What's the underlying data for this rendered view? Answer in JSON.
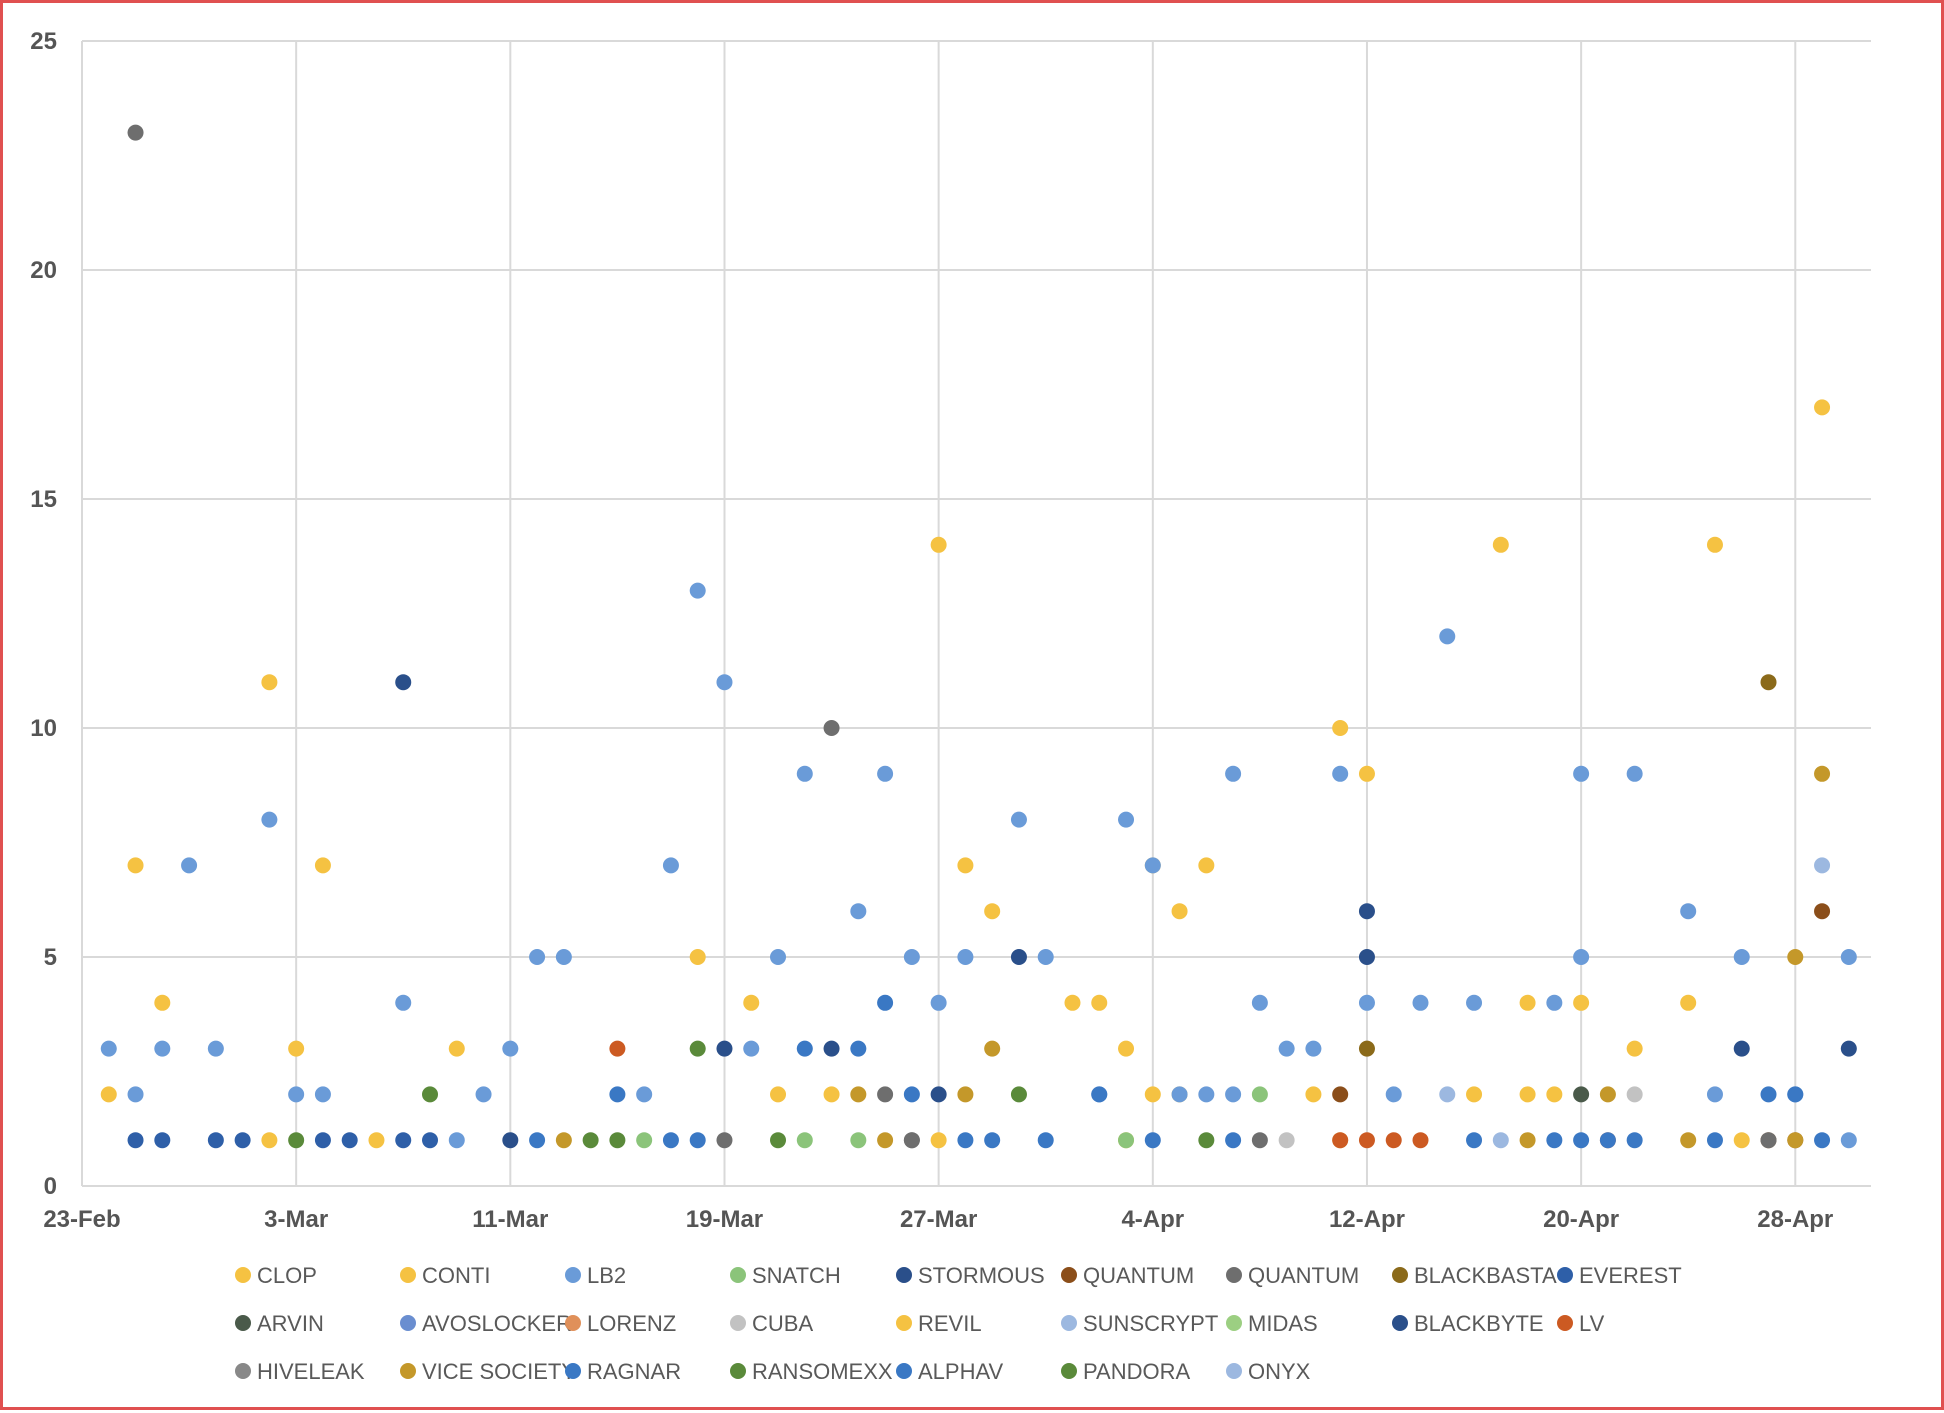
{
  "chart_data": {
    "type": "scatter",
    "title": "",
    "xlabel": "",
    "ylabel": "",
    "x_axis_type": "date",
    "x_range": [
      "2022-02-23",
      "2022-04-30"
    ],
    "x_tick_labels": [
      "23-Feb",
      "3-Mar",
      "11-Mar",
      "19-Mar",
      "27-Mar",
      "4-Apr",
      "12-Apr",
      "20-Apr",
      "28-Apr"
    ],
    "x_ticks": [
      "2022-02-23",
      "2022-03-03",
      "2022-03-11",
      "2022-03-19",
      "2022-03-27",
      "2022-04-04",
      "2022-04-12",
      "2022-04-20",
      "2022-04-28"
    ],
    "ylim": [
      0,
      25
    ],
    "y_ticks": [
      0,
      5,
      10,
      15,
      20,
      25
    ],
    "y_tick_labels": [
      "0",
      "5",
      "10",
      "15",
      "20",
      "25"
    ],
    "grid": true,
    "legend_position": "bottom",
    "series": [
      {
        "name": "CLOP",
        "color": "#f5c242",
        "points": [
          {
            "x": "2022-02-24",
            "y": 2
          },
          {
            "x": "2022-02-25",
            "y": 7
          },
          {
            "x": "2022-02-26",
            "y": 4
          },
          {
            "x": "2022-03-02",
            "y": 11
          },
          {
            "x": "2022-03-02",
            "y": 1
          },
          {
            "x": "2022-03-03",
            "y": 3
          },
          {
            "x": "2022-03-04",
            "y": 7
          },
          {
            "x": "2022-03-06",
            "y": 1
          },
          {
            "x": "2022-03-09",
            "y": 3
          },
          {
            "x": "2022-03-18",
            "y": 5
          },
          {
            "x": "2022-03-20",
            "y": 4
          },
          {
            "x": "2022-03-21",
            "y": 2
          },
          {
            "x": "2022-03-23",
            "y": 2
          },
          {
            "x": "2022-03-27",
            "y": 14
          },
          {
            "x": "2022-03-27",
            "y": 1
          },
          {
            "x": "2022-03-28",
            "y": 7
          },
          {
            "x": "2022-03-29",
            "y": 6
          },
          {
            "x": "2022-04-01",
            "y": 4
          },
          {
            "x": "2022-04-02",
            "y": 4
          },
          {
            "x": "2022-04-03",
            "y": 3
          },
          {
            "x": "2022-04-03",
            "y": 1
          },
          {
            "x": "2022-04-04",
            "y": 7
          },
          {
            "x": "2022-04-04",
            "y": 2
          },
          {
            "x": "2022-04-05",
            "y": 6
          },
          {
            "x": "2022-04-05",
            "y": 2
          },
          {
            "x": "2022-04-06",
            "y": 7
          },
          {
            "x": "2022-04-10",
            "y": 2
          },
          {
            "x": "2022-04-11",
            "y": 10
          },
          {
            "x": "2022-04-11",
            "y": 1
          },
          {
            "x": "2022-04-12",
            "y": 9
          },
          {
            "x": "2022-04-16",
            "y": 2
          },
          {
            "x": "2022-04-17",
            "y": 14
          },
          {
            "x": "2022-04-18",
            "y": 4
          },
          {
            "x": "2022-04-18",
            "y": 2
          },
          {
            "x": "2022-04-19",
            "y": 2
          },
          {
            "x": "2022-04-20",
            "y": 4
          },
          {
            "x": "2022-04-22",
            "y": 3
          },
          {
            "x": "2022-04-24",
            "y": 4
          },
          {
            "x": "2022-04-25",
            "y": 14
          },
          {
            "x": "2022-04-26",
            "y": 1
          },
          {
            "x": "2022-04-29",
            "y": 17
          }
        ]
      },
      {
        "name": "CONTI",
        "color": "#f5c242",
        "points": []
      },
      {
        "name": "LB2",
        "color": "#6a9bd8",
        "points": [
          {
            "x": "2022-02-24",
            "y": 3
          },
          {
            "x": "2022-02-25",
            "y": 2
          },
          {
            "x": "2022-02-26",
            "y": 3
          },
          {
            "x": "2022-02-27",
            "y": 7
          },
          {
            "x": "2022-02-28",
            "y": 3
          },
          {
            "x": "2022-03-02",
            "y": 8
          },
          {
            "x": "2022-03-03",
            "y": 2
          },
          {
            "x": "2022-03-04",
            "y": 2
          },
          {
            "x": "2022-03-07",
            "y": 4
          },
          {
            "x": "2022-03-09",
            "y": 1
          },
          {
            "x": "2022-03-10",
            "y": 2
          },
          {
            "x": "2022-03-11",
            "y": 3
          },
          {
            "x": "2022-03-12",
            "y": 5
          },
          {
            "x": "2022-03-13",
            "y": 5
          },
          {
            "x": "2022-03-16",
            "y": 2
          },
          {
            "x": "2022-03-17",
            "y": 7
          },
          {
            "x": "2022-03-18",
            "y": 13
          },
          {
            "x": "2022-03-19",
            "y": 11
          },
          {
            "x": "2022-03-20",
            "y": 3
          },
          {
            "x": "2022-03-21",
            "y": 5
          },
          {
            "x": "2022-03-22",
            "y": 9
          },
          {
            "x": "2022-03-24",
            "y": 6
          },
          {
            "x": "2022-03-25",
            "y": 9
          },
          {
            "x": "2022-03-26",
            "y": 5
          },
          {
            "x": "2022-03-27",
            "y": 4
          },
          {
            "x": "2022-03-28",
            "y": 5
          },
          {
            "x": "2022-03-30",
            "y": 8
          },
          {
            "x": "2022-03-31",
            "y": 5
          },
          {
            "x": "2022-04-02",
            "y": 2
          },
          {
            "x": "2022-04-03",
            "y": 8
          },
          {
            "x": "2022-04-04",
            "y": 7
          },
          {
            "x": "2022-04-05",
            "y": 2
          },
          {
            "x": "2022-04-06",
            "y": 2
          },
          {
            "x": "2022-04-07",
            "y": 9
          },
          {
            "x": "2022-04-07",
            "y": 2
          },
          {
            "x": "2022-04-08",
            "y": 4
          },
          {
            "x": "2022-04-09",
            "y": 3
          },
          {
            "x": "2022-04-10",
            "y": 3
          },
          {
            "x": "2022-04-11",
            "y": 9
          },
          {
            "x": "2022-04-12",
            "y": 4
          },
          {
            "x": "2022-04-13",
            "y": 2
          },
          {
            "x": "2022-04-14",
            "y": 4
          },
          {
            "x": "2022-04-15",
            "y": 12
          },
          {
            "x": "2022-04-16",
            "y": 4
          },
          {
            "x": "2022-04-19",
            "y": 4
          },
          {
            "x": "2022-04-20",
            "y": 9
          },
          {
            "x": "2022-04-20",
            "y": 5
          },
          {
            "x": "2022-04-22",
            "y": 9
          },
          {
            "x": "2022-04-24",
            "y": 6
          },
          {
            "x": "2022-04-25",
            "y": 2
          },
          {
            "x": "2022-04-26",
            "y": 5
          },
          {
            "x": "2022-04-28",
            "y": 2
          },
          {
            "x": "2022-04-30",
            "y": 5
          },
          {
            "x": "2022-04-30",
            "y": 1
          }
        ]
      },
      {
        "name": "SNATCH",
        "color": "#8bc47a",
        "points": [
          {
            "x": "2022-03-16",
            "y": 1
          },
          {
            "x": "2022-03-22",
            "y": 1
          },
          {
            "x": "2022-03-24",
            "y": 1
          },
          {
            "x": "2022-04-03",
            "y": 1
          },
          {
            "x": "2022-04-08",
            "y": 2
          }
        ]
      },
      {
        "name": "STORMOUS",
        "color": "#2a4f8a",
        "points": [
          {
            "x": "2022-03-07",
            "y": 11
          },
          {
            "x": "2022-03-11",
            "y": 1
          },
          {
            "x": "2022-03-23",
            "y": 3
          },
          {
            "x": "2022-03-27",
            "y": 2
          },
          {
            "x": "2022-03-30",
            "y": 5
          },
          {
            "x": "2022-04-12",
            "y": 5
          },
          {
            "x": "2022-04-26",
            "y": 3
          }
        ]
      },
      {
        "name": "QUANTUM",
        "color": "#8b4e1a",
        "points": [
          {
            "x": "2022-04-11",
            "y": 2
          },
          {
            "x": "2022-04-27",
            "y": 1
          },
          {
            "x": "2022-04-28",
            "y": 1
          },
          {
            "x": "2022-04-29",
            "y": 6
          }
        ]
      },
      {
        "name": "QUANTUM",
        "color": "#6e6e6e",
        "points": [
          {
            "x": "2022-02-25",
            "y": 23
          },
          {
            "x": "2022-03-19",
            "y": 1
          },
          {
            "x": "2022-03-23",
            "y": 10
          },
          {
            "x": "2022-03-25",
            "y": 2
          },
          {
            "x": "2022-03-26",
            "y": 1
          },
          {
            "x": "2022-03-26",
            "y": 1
          },
          {
            "x": "2022-04-08",
            "y": 1
          },
          {
            "x": "2022-04-27",
            "y": 1
          }
        ]
      },
      {
        "name": "BLACKBASTA",
        "color": "#8b6a1a",
        "points": [
          {
            "x": "2022-04-12",
            "y": 3
          },
          {
            "x": "2022-04-27",
            "y": 11
          }
        ]
      },
      {
        "name": "EVEREST",
        "color": "#2e5fa8",
        "points": [
          {
            "x": "2022-02-25",
            "y": 1
          },
          {
            "x": "2022-02-26",
            "y": 1
          },
          {
            "x": "2022-02-28",
            "y": 1
          },
          {
            "x": "2022-03-01",
            "y": 1
          },
          {
            "x": "2022-03-04",
            "y": 1
          },
          {
            "x": "2022-03-05",
            "y": 1
          },
          {
            "x": "2022-03-07",
            "y": 1
          },
          {
            "x": "2022-03-08",
            "y": 1
          }
        ]
      },
      {
        "name": "ARVIN",
        "color": "#4a5a4a",
        "points": [
          {
            "x": "2022-04-20",
            "y": 2
          }
        ]
      },
      {
        "name": "AVOSLOCKER",
        "color": "#6a8ed0",
        "points": []
      },
      {
        "name": "LORENZ",
        "color": "#e0905a",
        "points": []
      },
      {
        "name": "CUBA",
        "color": "#c2c2c2",
        "points": [
          {
            "x": "2022-04-09",
            "y": 1
          },
          {
            "x": "2022-04-22",
            "y": 2
          }
        ]
      },
      {
        "name": "REVIL",
        "color": "#f5c242",
        "points": []
      },
      {
        "name": "SUNSCRYPT",
        "color": "#9cb8e0",
        "points": [
          {
            "x": "2022-04-15",
            "y": 2
          },
          {
            "x": "2022-04-17",
            "y": 1
          },
          {
            "x": "2022-04-29",
            "y": 7
          }
        ]
      },
      {
        "name": "MIDAS",
        "color": "#9ccf82",
        "points": []
      },
      {
        "name": "BLACKBYTE",
        "color": "#2a4f8a",
        "points": [
          {
            "x": "2022-03-19",
            "y": 3
          },
          {
            "x": "2022-04-12",
            "y": 6
          },
          {
            "x": "2022-04-30",
            "y": 3
          }
        ]
      },
      {
        "name": "LV",
        "color": "#cc5a22",
        "points": [
          {
            "x": "2022-03-15",
            "y": 3
          },
          {
            "x": "2022-04-11",
            "y": 1
          },
          {
            "x": "2022-04-12",
            "y": 1
          },
          {
            "x": "2022-04-13",
            "y": 1
          },
          {
            "x": "2022-04-14",
            "y": 1
          },
          {
            "x": "2022-04-21",
            "y": 1
          }
        ]
      },
      {
        "name": "HIVELEAK",
        "color": "#888888",
        "points": []
      },
      {
        "name": "VICE SOCIETY",
        "color": "#c4982a",
        "points": [
          {
            "x": "2022-03-13",
            "y": 1
          },
          {
            "x": "2022-03-24",
            "y": 2
          },
          {
            "x": "2022-03-25",
            "y": 1
          },
          {
            "x": "2022-03-28",
            "y": 2
          },
          {
            "x": "2022-03-29",
            "y": 3
          },
          {
            "x": "2022-04-18",
            "y": 1
          },
          {
            "x": "2022-04-21",
            "y": 2
          },
          {
            "x": "2022-04-24",
            "y": 1
          },
          {
            "x": "2022-04-28",
            "y": 5
          },
          {
            "x": "2022-04-28",
            "y": 1
          },
          {
            "x": "2022-04-29",
            "y": 9
          }
        ]
      },
      {
        "name": "RAGNAR",
        "color": "#3a78c4",
        "points": [
          {
            "x": "2022-03-12",
            "y": 1
          },
          {
            "x": "2022-03-15",
            "y": 2
          },
          {
            "x": "2022-03-17",
            "y": 1
          },
          {
            "x": "2022-03-18",
            "y": 1
          },
          {
            "x": "2022-03-22",
            "y": 3
          },
          {
            "x": "2022-03-24",
            "y": 3
          },
          {
            "x": "2022-03-25",
            "y": 4
          },
          {
            "x": "2022-03-26",
            "y": 2
          },
          {
            "x": "2022-03-28",
            "y": 1
          },
          {
            "x": "2022-03-29",
            "y": 1
          },
          {
            "x": "2022-03-31",
            "y": 1
          },
          {
            "x": "2022-04-02",
            "y": 2
          },
          {
            "x": "2022-04-04",
            "y": 1
          },
          {
            "x": "2022-04-07",
            "y": 1
          },
          {
            "x": "2022-04-16",
            "y": 1
          },
          {
            "x": "2022-04-19",
            "y": 1
          },
          {
            "x": "2022-04-20",
            "y": 1
          },
          {
            "x": "2022-04-21",
            "y": 1
          },
          {
            "x": "2022-04-22",
            "y": 1
          },
          {
            "x": "2022-04-25",
            "y": 1
          },
          {
            "x": "2022-04-27",
            "y": 2
          },
          {
            "x": "2022-04-28",
            "y": 2
          },
          {
            "x": "2022-04-29",
            "y": 1
          }
        ]
      },
      {
        "name": "RANSOMEXX",
        "color": "#5a8a3a",
        "points": [
          {
            "x": "2022-03-03",
            "y": 1
          },
          {
            "x": "2022-03-15",
            "y": 1
          },
          {
            "x": "2022-03-18",
            "y": 3
          },
          {
            "x": "2022-03-21",
            "y": 1
          },
          {
            "x": "2022-03-30",
            "y": 2
          }
        ]
      },
      {
        "name": "ALPHAV",
        "color": "#3a78c4",
        "points": []
      },
      {
        "name": "PANDORA",
        "color": "#5a8a3a",
        "points": [
          {
            "x": "2022-03-08",
            "y": 2
          },
          {
            "x": "2022-03-14",
            "y": 1
          },
          {
            "x": "2022-04-06",
            "y": 1
          }
        ]
      },
      {
        "name": "ONYX",
        "color": "#9cb8e0",
        "points": []
      }
    ]
  }
}
